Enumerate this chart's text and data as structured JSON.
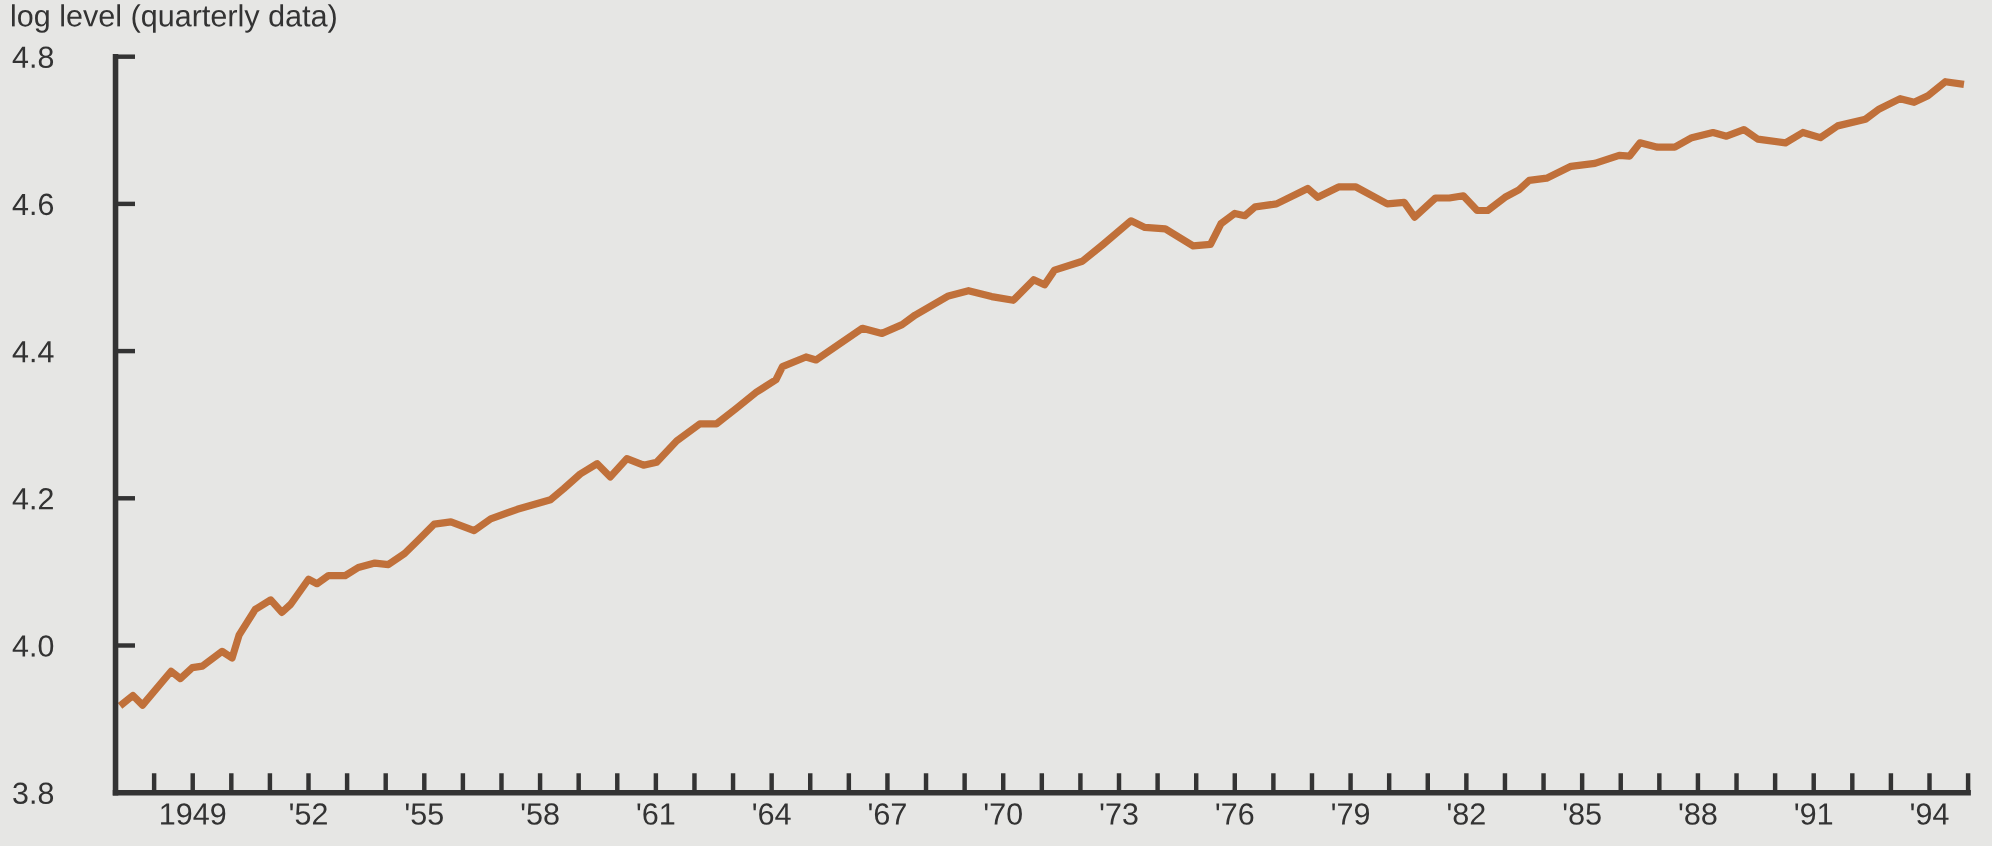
{
  "chart_data": {
    "type": "line",
    "ylabel": "log level (quarterly data)",
    "x": [
      1947.19,
      1947.45,
      1947.7,
      1948.44,
      1948.68,
      1948.99,
      1949.25,
      1949.76,
      1950.02,
      1950.2,
      1950.62,
      1951.02,
      1951.31,
      1951.54,
      1952.0,
      1952.22,
      1952.52,
      1952.95,
      1953.29,
      1953.72,
      1954.07,
      1954.49,
      1954.84,
      1955.26,
      1955.69,
      1956.29,
      1956.72,
      1957.41,
      1958.27,
      1958.61,
      1959.04,
      1959.48,
      1959.82,
      1960.25,
      1960.68,
      1961.02,
      1961.54,
      1962.14,
      1962.57,
      1963.08,
      1963.6,
      1964.11,
      1964.28,
      1964.89,
      1965.15,
      1966.35,
      1966.86,
      1967.38,
      1967.72,
      1968.58,
      1969.1,
      1969.7,
      1970.26,
      1970.79,
      1971.07,
      1971.33,
      1972.05,
      1972.59,
      1973.31,
      1973.67,
      1974.2,
      1974.92,
      1975.37,
      1975.64,
      1976.0,
      1976.26,
      1976.53,
      1977.08,
      1977.89,
      1978.15,
      1978.69,
      1979.14,
      1979.95,
      1980.39,
      1980.66,
      1981.2,
      1981.56,
      1981.92,
      1982.28,
      1982.55,
      1983.0,
      1983.36,
      1983.63,
      1984.08,
      1984.71,
      1985.33,
      1985.96,
      1986.23,
      1986.5,
      1986.95,
      1987.4,
      1987.84,
      1988.39,
      1988.74,
      1989.19,
      1989.55,
      1990.27,
      1990.72,
      1991.17,
      1991.62,
      1992.34,
      1992.7,
      1993.24,
      1993.6,
      1993.96,
      1994.41,
      1994.8
    ],
    "series": [
      {
        "color": "#c0703a",
        "values": [
          3.921,
          3.932,
          3.919,
          3.965,
          3.955,
          3.97,
          3.972,
          3.992,
          3.983,
          4.014,
          4.049,
          4.062,
          4.045,
          4.056,
          4.09,
          4.084,
          4.095,
          4.095,
          4.106,
          4.112,
          4.11,
          4.125,
          4.143,
          4.165,
          4.168,
          4.156,
          4.172,
          4.185,
          4.198,
          4.213,
          4.233,
          4.247,
          4.229,
          4.254,
          4.245,
          4.249,
          4.278,
          4.301,
          4.301,
          4.322,
          4.344,
          4.361,
          4.379,
          4.392,
          4.388,
          4.431,
          4.424,
          4.436,
          4.449,
          4.475,
          4.482,
          4.474,
          4.469,
          4.497,
          4.49,
          4.51,
          4.522,
          4.545,
          4.577,
          4.568,
          4.566,
          4.543,
          4.545,
          4.573,
          4.587,
          4.584,
          4.596,
          4.6,
          4.621,
          4.609,
          4.623,
          4.623,
          4.6,
          4.602,
          4.582,
          4.608,
          4.608,
          4.611,
          4.591,
          4.591,
          4.609,
          4.619,
          4.632,
          4.635,
          4.651,
          4.655,
          4.666,
          4.665,
          4.683,
          4.677,
          4.677,
          4.69,
          4.697,
          4.692,
          4.701,
          4.688,
          4.683,
          4.697,
          4.69,
          4.706,
          4.715,
          4.729,
          4.743,
          4.738,
          4.747,
          4.766,
          4.763
        ]
      }
    ],
    "xlim": [
      1947,
      1995
    ],
    "xticks": [
      {
        "value": 1948,
        "label": null
      },
      {
        "value": 1949,
        "label": "1949"
      },
      {
        "value": 1950,
        "label": null
      },
      {
        "value": 1951,
        "label": null
      },
      {
        "value": 1952,
        "label": "'52"
      },
      {
        "value": 1953,
        "label": null
      },
      {
        "value": 1954,
        "label": null
      },
      {
        "value": 1955,
        "label": "'55"
      },
      {
        "value": 1956,
        "label": null
      },
      {
        "value": 1957,
        "label": null
      },
      {
        "value": 1958,
        "label": "'58"
      },
      {
        "value": 1959,
        "label": null
      },
      {
        "value": 1960,
        "label": null
      },
      {
        "value": 1961,
        "label": "'61"
      },
      {
        "value": 1962,
        "label": null
      },
      {
        "value": 1963,
        "label": null
      },
      {
        "value": 1964,
        "label": "'64"
      },
      {
        "value": 1965,
        "label": null
      },
      {
        "value": 1966,
        "label": null
      },
      {
        "value": 1967,
        "label": "'67"
      },
      {
        "value": 1968,
        "label": null
      },
      {
        "value": 1969,
        "label": null
      },
      {
        "value": 1970,
        "label": "'70"
      },
      {
        "value": 1971,
        "label": null
      },
      {
        "value": 1972,
        "label": null
      },
      {
        "value": 1973,
        "label": "'73"
      },
      {
        "value": 1974,
        "label": null
      },
      {
        "value": 1975,
        "label": null
      },
      {
        "value": 1976,
        "label": "'76"
      },
      {
        "value": 1977,
        "label": null
      },
      {
        "value": 1978,
        "label": null
      },
      {
        "value": 1979,
        "label": "'79"
      },
      {
        "value": 1980,
        "label": null
      },
      {
        "value": 1981,
        "label": null
      },
      {
        "value": 1982,
        "label": "'82"
      },
      {
        "value": 1983,
        "label": null
      },
      {
        "value": 1984,
        "label": null
      },
      {
        "value": 1985,
        "label": "'85"
      },
      {
        "value": 1986,
        "label": null
      },
      {
        "value": 1987,
        "label": null
      },
      {
        "value": 1988,
        "label": "'88"
      },
      {
        "value": 1989,
        "label": null
      },
      {
        "value": 1990,
        "label": null
      },
      {
        "value": 1991,
        "label": "'91"
      },
      {
        "value": 1992,
        "label": null
      },
      {
        "value": 1993,
        "label": null
      },
      {
        "value": 1994,
        "label": "'94"
      },
      {
        "value": 1995,
        "label": null
      }
    ],
    "ylim": [
      3.8,
      4.8
    ],
    "yticks": [
      {
        "value": 3.8,
        "label": "3.8"
      },
      {
        "value": 4.0,
        "label": "4.0"
      },
      {
        "value": 4.2,
        "label": "4.2"
      },
      {
        "value": 4.4,
        "label": "4.4"
      },
      {
        "value": 4.6,
        "label": "4.6"
      },
      {
        "value": 4.8,
        "label": "4.8"
      }
    ],
    "grid": false,
    "marker": "none",
    "line_style": "solid"
  }
}
